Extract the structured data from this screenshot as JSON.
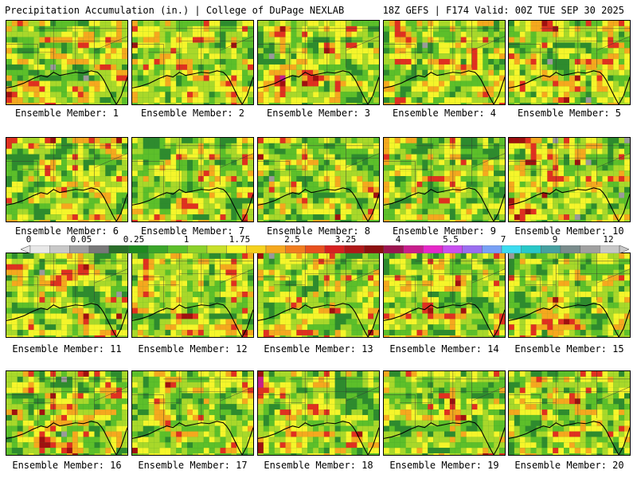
{
  "header": {
    "left": "Precipitation Accumulation (in.) | College of DuPage NEXLAB",
    "right": "18Z GEFS | F174 Valid: 00Z TUE SEP 30 2025"
  },
  "members": [
    {
      "label": "Ensemble Member: 1"
    },
    {
      "label": "Ensemble Member: 2"
    },
    {
      "label": "Ensemble Member: 3"
    },
    {
      "label": "Ensemble Member: 4"
    },
    {
      "label": "Ensemble Member: 5"
    },
    {
      "label": "Ensemble Member: 6"
    },
    {
      "label": "Ensemble Member: 7"
    },
    {
      "label": "Ensemble Member: 8"
    },
    {
      "label": "Ensemble Member: 9"
    },
    {
      "label": "Ensemble Member: 10"
    },
    {
      "label": "Ensemble Member: 11"
    },
    {
      "label": "Ensemble Member: 12"
    },
    {
      "label": "Ensemble Member: 13"
    },
    {
      "label": "Ensemble Member: 14"
    },
    {
      "label": "Ensemble Member: 15"
    },
    {
      "label": "Ensemble Member: 16"
    },
    {
      "label": "Ensemble Member: 17"
    },
    {
      "label": "Ensemble Member: 18"
    },
    {
      "label": "Ensemble Member: 19"
    },
    {
      "label": "Ensemble Member: 20"
    }
  ],
  "colorbar": {
    "labels": [
      "0",
      "0.05",
      "0.25",
      "1",
      "1.75",
      "2.5",
      "3.25",
      "4",
      "5.5",
      "7",
      "9",
      "12"
    ],
    "colors": [
      "#e8e8e8",
      "#c8c8c8",
      "#a0a0a0",
      "#787878",
      "#2a6e2a",
      "#1f8a1f",
      "#3aa52a",
      "#5cbf2a",
      "#8cd12a",
      "#c8e02a",
      "#f5f52a",
      "#f5d21e",
      "#f5a81e",
      "#f07d1e",
      "#e8501e",
      "#d62020",
      "#b01818",
      "#8c1010",
      "#9c1450",
      "#c81e8c",
      "#e628c8",
      "#c850f0",
      "#9a6ef0",
      "#78a0f5",
      "#3cdcf0",
      "#28c8c8",
      "#46a0a0",
      "#7a8c8c",
      "#a0a0a0",
      "#c8c8c8"
    ],
    "map_palette": {
      "low": "#2e8b2e",
      "mid_low": "#5cbf2a",
      "mid": "#a8d82a",
      "yellow": "#f5f52a",
      "orange": "#f5a81e",
      "red": "#e03020",
      "darkred": "#a01010",
      "magenta": "#c81e8c",
      "cyan": "#3cdcf0",
      "gray": "#9a9a9a"
    }
  }
}
